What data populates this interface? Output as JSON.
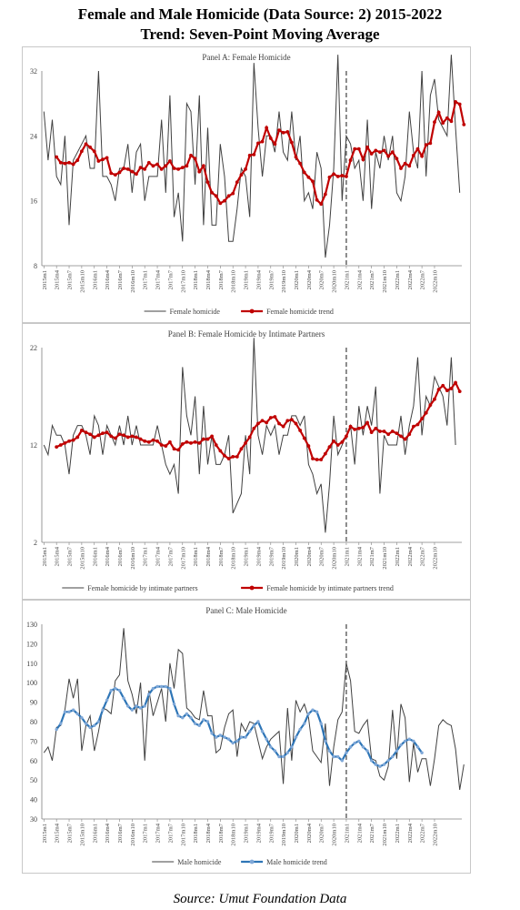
{
  "header": {
    "title_line1": "Female and Male Homicide (Data Source: 2) 2015-2022",
    "title_line2": "Trend:  Seven-Point Moving Average"
  },
  "footer": {
    "source": "Source: Umut Foundation Data"
  },
  "colors": {
    "raw": "#404040",
    "trend_red": "#c00000",
    "trend_blue": "#2e75b6",
    "marker_blue": "#7fa8d8"
  },
  "x_tick_labels": [
    "2015m1",
    "2015m4",
    "2015m7",
    "2015m10",
    "2016m1",
    "2016m4",
    "2016m7",
    "2016m10",
    "2017m1",
    "2017m4",
    "2017m7",
    "2017m10",
    "2018m1",
    "2018m4",
    "2018m7",
    "2018m10",
    "2019m1",
    "2019m4",
    "2019m7",
    "2019m10",
    "2020m1",
    "2020m4",
    "2020m7",
    "2020m10",
    "2021m1",
    "2021m4",
    "2021m7",
    "2021m10",
    "2022m1",
    "2022m4",
    "2022m7",
    "2022m10"
  ],
  "chart_data": [
    {
      "type": "line",
      "title": "Panel A: Female Homicide",
      "ylim": [
        8,
        32
      ],
      "yticks": [
        8,
        16,
        24,
        32
      ],
      "vline_at": "2021m1",
      "grid": false,
      "legend": "bottom",
      "series": [
        {
          "name": "Female homicide",
          "style": "raw",
          "values": [
            27,
            21,
            26,
            19,
            18,
            24,
            13,
            21,
            22,
            23,
            24,
            20,
            20,
            32,
            19,
            19,
            18,
            16,
            20,
            20,
            23,
            17,
            22,
            23,
            16,
            19,
            19,
            19,
            26,
            17,
            29,
            14,
            17,
            11,
            28,
            27,
            18,
            29,
            13,
            25,
            13,
            13,
            23,
            19,
            11,
            11,
            15,
            20,
            19,
            14,
            33,
            25,
            19,
            24,
            24,
            22,
            27,
            22,
            21,
            27,
            21,
            24,
            16,
            17,
            15,
            22,
            20,
            9,
            13,
            20,
            34,
            16,
            24,
            23,
            20,
            21,
            16,
            26,
            15,
            22,
            20,
            24,
            21,
            24,
            17,
            16,
            19,
            27,
            22,
            20,
            32,
            19,
            29,
            31,
            26,
            25,
            24,
            34,
            25,
            17
          ]
        },
        {
          "name": "Female homicide trend",
          "style": "trend_red",
          "start": 3,
          "values": [
            21.4,
            20.7,
            20.6,
            20.7,
            20.5,
            21.0,
            22.1,
            23.0,
            22.6,
            22.1,
            20.9,
            21.1,
            21.3,
            19.4,
            19.2,
            19.5,
            20.0,
            19.9,
            19.6,
            19.3,
            20.1,
            19.9,
            20.7,
            20.3,
            20.5,
            19.9,
            20.3,
            20.9,
            20.0,
            19.9,
            20.1,
            20.3,
            21.6,
            21.2,
            19.6,
            20.3,
            18.3,
            17.0,
            16.6,
            15.7,
            16.0,
            16.6,
            16.9,
            18.3,
            19.2,
            19.9,
            21.6,
            21.7,
            23.1,
            23.3,
            25.0,
            23.7,
            23.0,
            24.7,
            24.4,
            24.5,
            23.2,
            21.4,
            20.6,
            19.5,
            18.9,
            18.4,
            16.1,
            15.6,
            16.8,
            18.9,
            19.3,
            19.0,
            19.1,
            19.0,
            21.0,
            22.4,
            22.4,
            21.1,
            22.6,
            21.8,
            22.2,
            22.0,
            22.2,
            21.5,
            22.0,
            21.2,
            20.0,
            20.6,
            20.3,
            21.6,
            22.4,
            21.5,
            22.9,
            23.1,
            25.7,
            26.9,
            25.6,
            26.2,
            25.8,
            28.2,
            27.9,
            25.4
          ]
        }
      ]
    },
    {
      "type": "line",
      "title": "Panel B: Female Homicide by Intimate Partners",
      "ylim": [
        2,
        22
      ],
      "yticks": [
        2,
        12,
        22
      ],
      "vline_at": "2021m1",
      "grid": false,
      "legend": "bottom",
      "series": [
        {
          "name": "Female homicide by intimate partners",
          "style": "raw",
          "values": [
            12,
            11,
            14,
            13,
            13,
            12,
            9,
            13,
            14,
            14,
            13,
            11,
            15,
            14,
            11,
            14,
            13,
            12,
            14,
            12,
            15,
            12,
            14,
            12,
            12,
            12,
            12,
            14,
            12,
            10,
            9,
            10,
            7,
            20,
            15,
            13,
            17,
            9,
            16,
            10,
            13,
            10,
            10,
            11,
            13,
            5,
            6,
            7,
            13,
            9,
            23,
            13,
            11,
            14,
            13,
            14,
            11,
            13,
            13,
            15,
            15,
            14,
            15,
            10,
            9,
            7,
            8,
            3,
            8,
            15,
            11,
            12,
            13,
            14,
            10,
            16,
            13,
            16,
            14,
            18,
            7,
            13,
            12,
            12,
            12,
            15,
            11,
            14,
            16,
            21,
            13,
            17,
            16,
            19,
            18,
            17,
            14,
            21,
            12
          ]
        },
        {
          "name": "Female homicide by intimate partners trend",
          "style": "trend_red",
          "start": 3,
          "values": [
            11.8,
            12.0,
            12.2,
            12.4,
            12.5,
            12.8,
            13.5,
            13.3,
            13.1,
            12.8,
            13.0,
            13.2,
            13.3,
            12.9,
            12.7,
            13.1,
            13.0,
            12.8,
            12.9,
            12.8,
            12.6,
            12.4,
            12.3,
            12.5,
            12.4,
            12.0,
            11.9,
            12.3,
            11.6,
            11.5,
            12.1,
            12.3,
            12.2,
            12.3,
            12.2,
            12.6,
            12.6,
            12.9,
            12.0,
            11.4,
            10.9,
            10.6,
            10.8,
            10.8,
            11.6,
            12.2,
            12.8,
            13.7,
            14.2,
            14.5,
            14.3,
            14.8,
            14.9,
            14.2,
            13.9,
            14.5,
            14.6,
            14.2,
            13.5,
            12.7,
            11.9,
            10.6,
            10.5,
            10.5,
            11.1,
            11.8,
            12.4,
            12.0,
            12.3,
            12.9,
            13.9,
            13.6,
            13.7,
            13.8,
            14.3,
            13.3,
            13.7,
            13.4,
            13.4,
            13.1,
            13.4,
            13.2,
            12.9,
            12.6,
            13.1,
            13.9,
            14.1,
            14.7,
            15.3,
            16.1,
            16.7,
            17.7,
            18.1,
            17.6,
            17.8,
            18.4,
            17.5
          ]
        }
      ]
    },
    {
      "type": "line",
      "title": "Panel C: Male Homicide",
      "ylim": [
        30,
        130
      ],
      "yticks": [
        30,
        40,
        50,
        60,
        70,
        80,
        90,
        100,
        110,
        120,
        130
      ],
      "vline_at": "2021m1",
      "grid": false,
      "legend": "bottom",
      "series": [
        {
          "name": "Male homicide",
          "style": "raw",
          "values": [
            64,
            67,
            60,
            77,
            78,
            86,
            102,
            92,
            102,
            65,
            78,
            83,
            65,
            75,
            87,
            86,
            84,
            101,
            104,
            128,
            101,
            94,
            84,
            100,
            60,
            96,
            83,
            90,
            97,
            80,
            110,
            97,
            117,
            115,
            87,
            85,
            82,
            81,
            96,
            83,
            83,
            64,
            66,
            77,
            84,
            86,
            62,
            79,
            75,
            80,
            79,
            70,
            61,
            67,
            71,
            73,
            75,
            48,
            87,
            60,
            91,
            85,
            89,
            82,
            65,
            62,
            59,
            79,
            47,
            67,
            81,
            85,
            110,
            101,
            75,
            74,
            78,
            81,
            61,
            60,
            52,
            50,
            57,
            86,
            61,
            89,
            82,
            49,
            69,
            54,
            61,
            61,
            47,
            61,
            78,
            81,
            79,
            78,
            66,
            45,
            58
          ]
        },
        {
          "name": "Male homicide trend",
          "style": "trend_blue",
          "start": 3,
          "values": [
            76,
            79,
            85,
            85,
            86,
            84,
            82,
            79,
            77,
            78,
            80,
            86,
            91,
            96,
            97,
            96,
            92,
            88,
            86,
            88,
            87,
            88,
            94,
            97,
            98,
            98,
            98,
            97,
            89,
            83,
            82,
            84,
            82,
            79,
            78,
            81,
            80,
            74,
            72,
            73,
            72,
            71,
            69,
            70,
            72,
            72,
            75,
            78,
            80,
            75,
            71,
            67,
            65,
            62,
            62,
            64,
            67,
            72,
            76,
            79,
            84,
            86,
            85,
            79,
            70,
            65,
            62,
            62,
            60,
            64,
            67,
            69,
            70,
            67,
            65,
            60,
            58,
            57,
            58,
            60,
            62,
            65,
            68,
            70,
            71,
            70,
            67,
            64
          ]
        }
      ]
    }
  ]
}
